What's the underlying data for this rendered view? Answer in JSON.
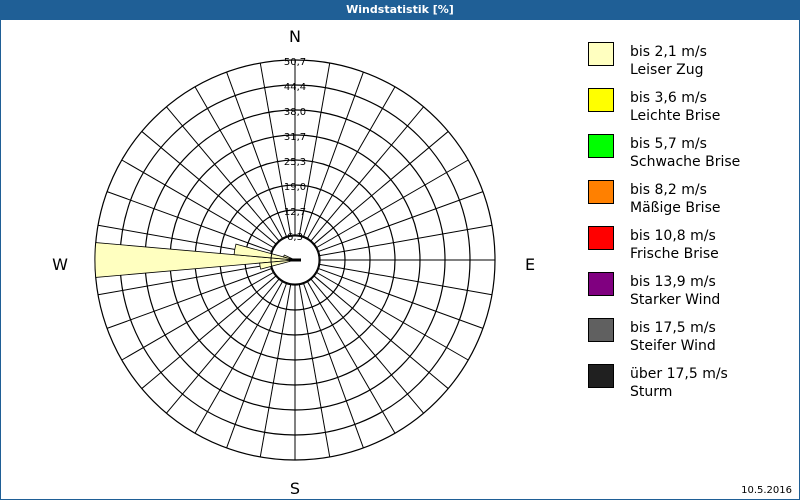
{
  "window": {
    "title": "Windstatistik [%]",
    "date": "10.5.2016"
  },
  "chart_data": {
    "type": "wind-rose",
    "title": "Windstatistik [%]",
    "directions": {
      "n": "N",
      "e": "E",
      "s": "S",
      "w": "W"
    },
    "ring_labels": [
      "6,3",
      "12,7",
      "19,0",
      "25,3",
      "31,7",
      "38,0",
      "44,4",
      "50,7"
    ],
    "rmax": 50.7,
    "sector_width_deg": 10,
    "sectors": [
      {
        "direction_deg": 270,
        "class": 0,
        "value": 50.7
      },
      {
        "direction_deg": 280,
        "class": 0,
        "value": 15.5
      },
      {
        "direction_deg": 260,
        "class": 0,
        "value": 9.0
      },
      {
        "direction_deg": 290,
        "class": 0,
        "value": 3.0
      }
    ],
    "legend": [
      {
        "line1": "bis 2,1 m/s",
        "line2": "Leiser Zug",
        "color": "#ffffc0"
      },
      {
        "line1": "bis 3,6 m/s",
        "line2": "Leichte Brise",
        "color": "#ffff00"
      },
      {
        "line1": "bis 5,7 m/s",
        "line2": "Schwache Brise",
        "color": "#00ff00"
      },
      {
        "line1": "bis 8,2 m/s",
        "line2": "Mäßige Brise",
        "color": "#ff8000"
      },
      {
        "line1": "bis 10,8 m/s",
        "line2": "Frische Brise",
        "color": "#ff0000"
      },
      {
        "line1": "bis 13,9 m/s",
        "line2": "Starker Wind",
        "color": "#800080"
      },
      {
        "line1": "bis 17,5 m/s",
        "line2": "Steifer Wind",
        "color": "#606060"
      },
      {
        "line1": "über 17,5 m/s",
        "line2": "Sturm",
        "color": "#202020"
      }
    ]
  }
}
